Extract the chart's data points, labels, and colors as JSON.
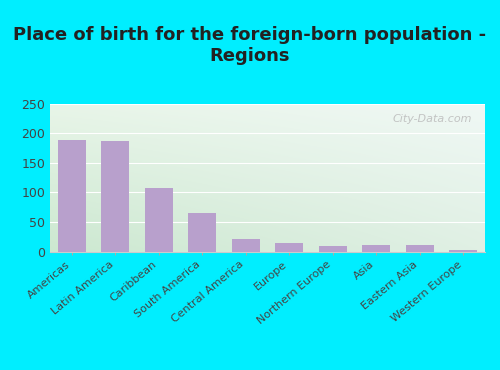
{
  "title": "Place of birth for the foreign-born population -\nRegions",
  "categories": [
    "Americas",
    "Latin America",
    "Caribbean",
    "South America",
    "Central America",
    "Europe",
    "Northern Europe",
    "Asia",
    "Eastern Asia",
    "Western Europe"
  ],
  "values": [
    188,
    187,
    107,
    65,
    22,
    14,
    10,
    11,
    11,
    3
  ],
  "bar_color": "#b8a0cc",
  "background_outer": "#00eeff",
  "bg_top_right": "#f0f8f5",
  "bg_bottom_left": "#d8eedc",
  "ylim": [
    0,
    250
  ],
  "yticks": [
    0,
    50,
    100,
    150,
    200,
    250
  ],
  "title_fontsize": 13,
  "tick_label_fontsize": 8,
  "watermark": "City-Data.com",
  "watermark_fontsize": 8
}
